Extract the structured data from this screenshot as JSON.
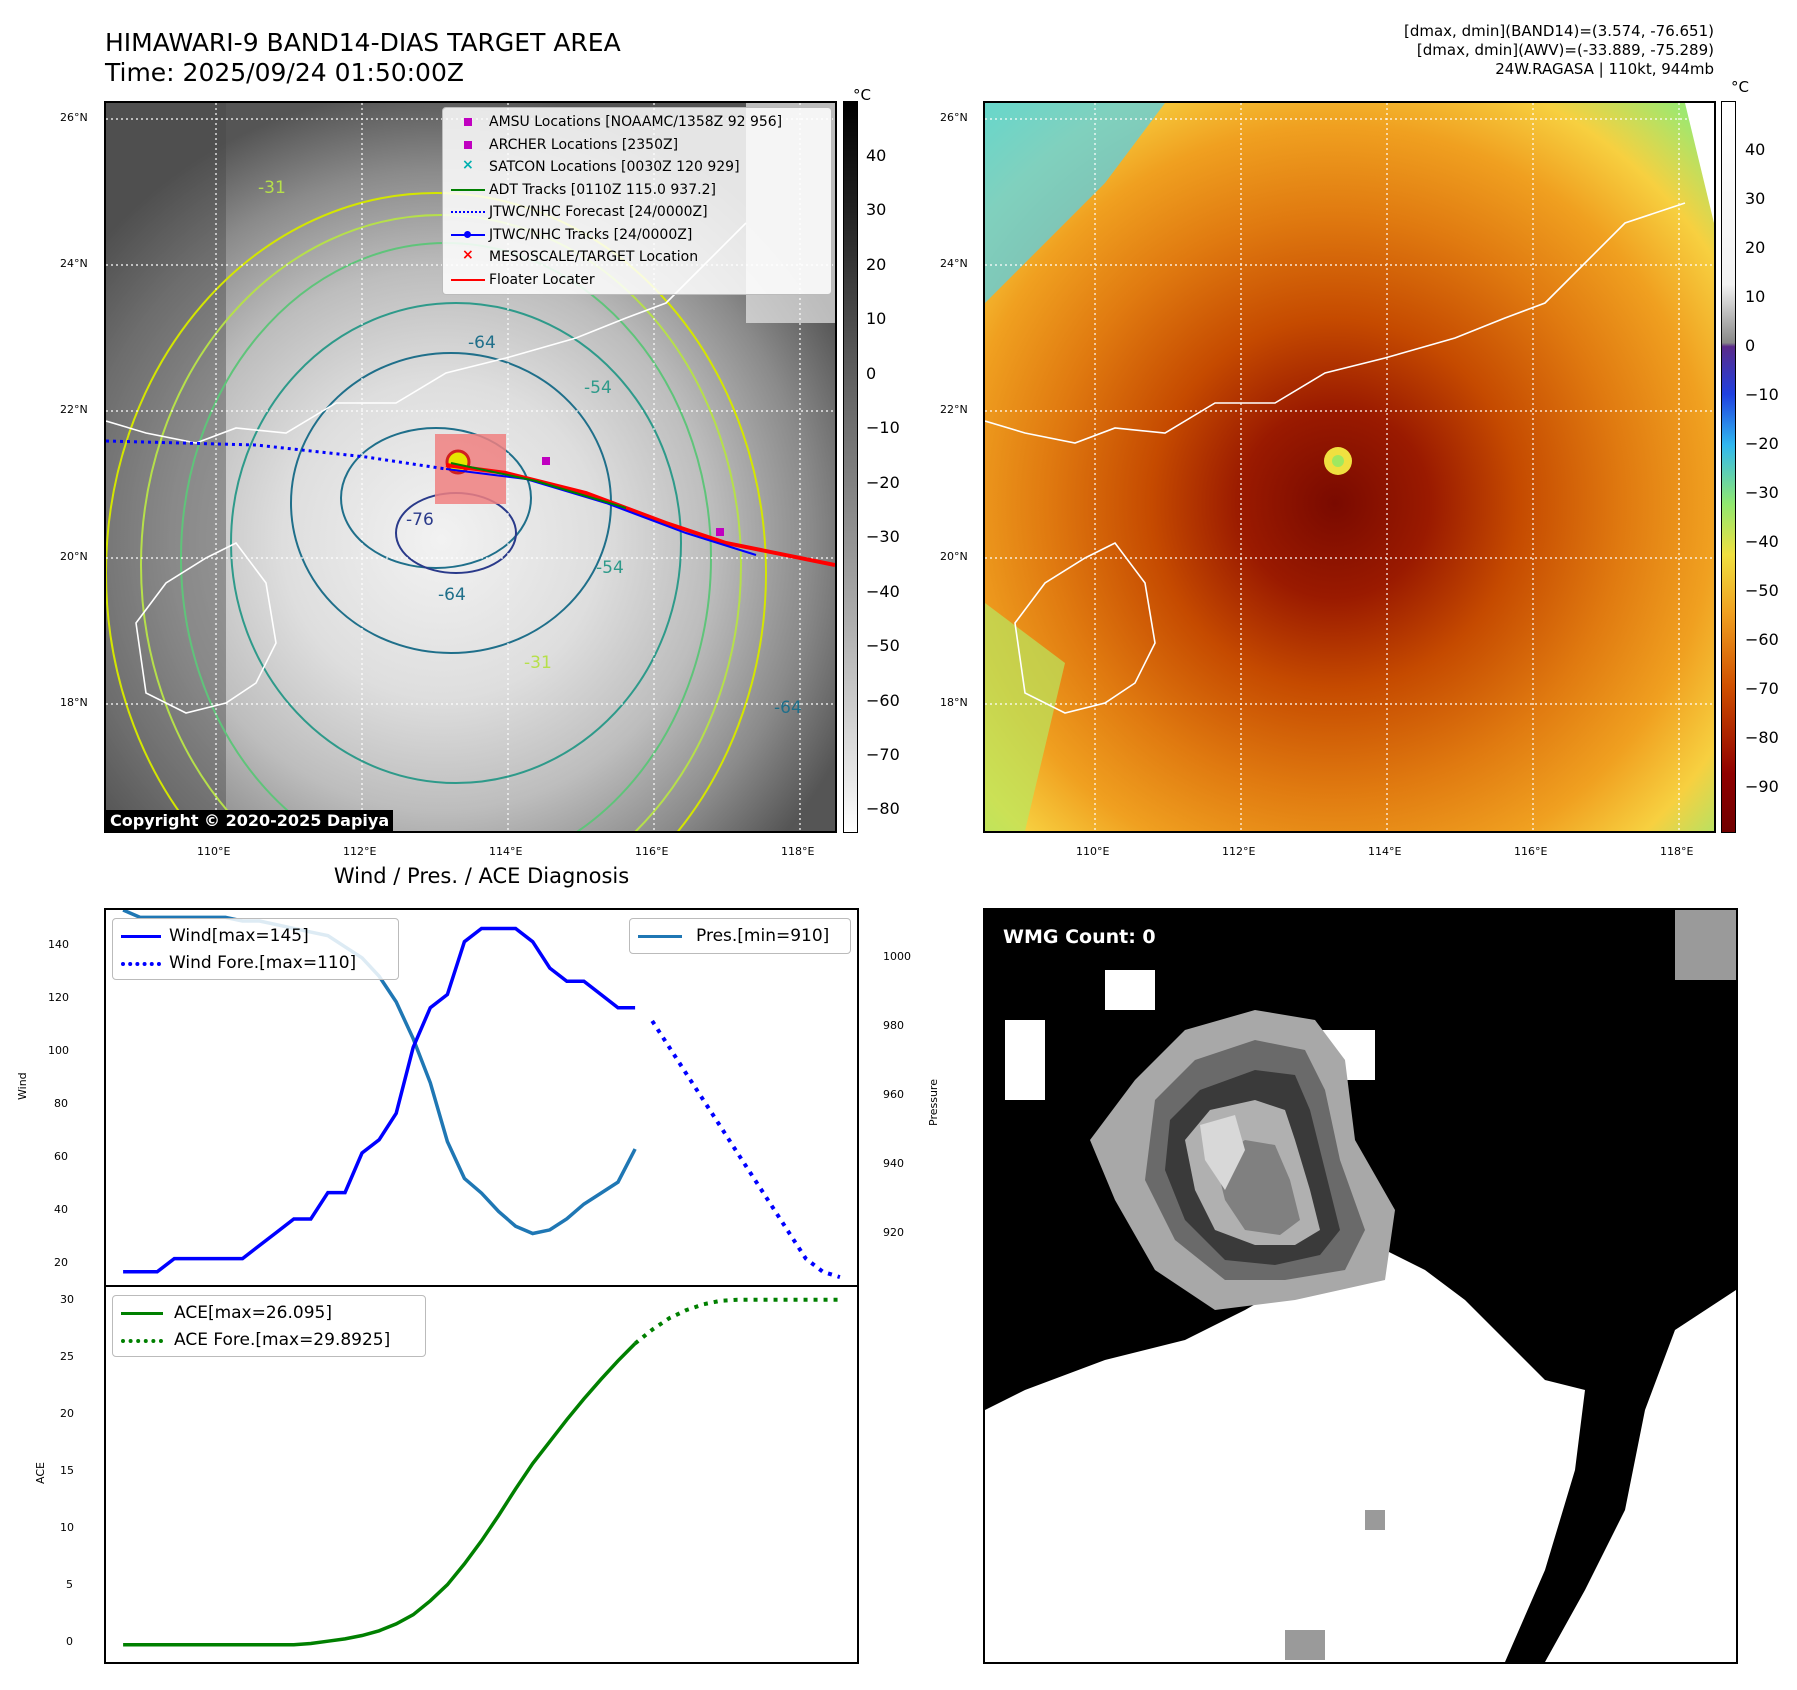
{
  "header": {
    "title_line1": "HIMAWARI-9 BAND14-DIAS TARGET AREA",
    "title_line2": "Time: 2025/09/24 01:50:00Z",
    "right_line1": "[dmax, dmin](BAND14)=(3.574, -76.651)",
    "right_line2": "[dmax, dmin](AWV)=(-33.889, -75.289)",
    "right_line3": "24W.RAGASA | 110kt, 944mb"
  },
  "map": {
    "lat_labels": [
      "26°N",
      "24°N",
      "22°N",
      "20°N",
      "18°N"
    ],
    "lon_labels": [
      "110°E",
      "112°E",
      "114°E",
      "116°E",
      "118°E"
    ],
    "contour_labels": [
      "-76",
      "-64",
      "-64",
      "-54",
      "-54",
      "-31",
      "-31",
      "-64"
    ],
    "copyright": "Copyright © 2020-2025 Dapiya"
  },
  "colorbar_left": {
    "unit": "°C",
    "ticks": [
      "40",
      "30",
      "20",
      "10",
      "0",
      "−10",
      "−20",
      "−30",
      "−40",
      "−50",
      "−60",
      "−70",
      "−80"
    ]
  },
  "colorbar_right": {
    "unit": "°C",
    "ticks": [
      "40",
      "30",
      "20",
      "10",
      "0",
      "−10",
      "−20",
      "−30",
      "−40",
      "−50",
      "−60",
      "−70",
      "−80",
      "−90"
    ]
  },
  "legend_map": [
    {
      "label": "AMSU Locations [NOAAMC/1358Z 92 956]",
      "icon": "square",
      "color": "#c000c0"
    },
    {
      "label": "ARCHER Locations [2350Z]",
      "icon": "square",
      "color": "#c000c0"
    },
    {
      "label": "SATCON Locations [0030Z 120 929]",
      "icon": "x-mark",
      "color": "#00b0b0"
    },
    {
      "label": "ADT Tracks [0110Z 115.0 937.2]",
      "icon": "line",
      "color": "#008000"
    },
    {
      "label": "JTWC/NHC Forecast [24/0000Z]",
      "icon": "dotted-line",
      "color": "#0000ff"
    },
    {
      "label": "JTWC/NHC Tracks [24/0000Z]",
      "icon": "line-dot",
      "color": "#0000ff"
    },
    {
      "label": "MESOSCALE/TARGET Location",
      "icon": "x-mark",
      "color": "#ff0000"
    },
    {
      "label": "Floater Locater",
      "icon": "line",
      "color": "#ff0000"
    }
  ],
  "diag_title": "Wind / Pres. / ACE Diagnosis",
  "wind_panel": {
    "ylabel_left": "Wind",
    "ylabel_right": "Pressure",
    "wind_ticks": [
      "20",
      "40",
      "60",
      "80",
      "100",
      "120",
      "140"
    ],
    "pres_ticks": [
      "920",
      "940",
      "960",
      "980",
      "1000"
    ],
    "legend_left": [
      "Wind[max=145]",
      "Wind Fore.[max=110]"
    ],
    "legend_right": [
      "Pres.[min=910]"
    ]
  },
  "ace_panel": {
    "ylabel": "ACE",
    "ticks": [
      "0",
      "5",
      "10",
      "15",
      "20",
      "25",
      "30"
    ],
    "legend": [
      "ACE[max=26.095]",
      "ACE Fore.[max=29.8925]"
    ]
  },
  "wmg": {
    "label": "WMG Count: 0"
  },
  "chart_data": [
    {
      "type": "line",
      "title": "Wind / Pres. / ACE Diagnosis",
      "ylabel": "Wind",
      "ylim": [
        10,
        152
      ],
      "series": [
        {
          "name": "Wind[max=145]",
          "color": "#0000ff",
          "x": [
            0,
            1,
            2,
            3,
            4,
            5,
            6,
            7,
            8,
            9,
            10,
            11,
            12,
            13,
            14,
            15,
            16,
            17,
            18,
            19,
            20,
            21,
            22,
            23,
            24,
            25,
            26,
            27,
            28,
            29,
            30
          ],
          "values": [
            15,
            15,
            15,
            20,
            20,
            20,
            20,
            20,
            25,
            30,
            35,
            35,
            45,
            45,
            60,
            65,
            75,
            100,
            115,
            120,
            140,
            145,
            145,
            145,
            140,
            130,
            125,
            125,
            120,
            115,
            115
          ]
        },
        {
          "name": "Wind Fore.[max=110]",
          "color": "#0000ff",
          "style": "dotted",
          "x": [
            31,
            32,
            33,
            34,
            35,
            36,
            37,
            38,
            39,
            40,
            41,
            42
          ],
          "values": [
            110,
            100,
            90,
            80,
            70,
            60,
            50,
            40,
            30,
            20,
            15,
            13
          ]
        }
      ]
    },
    {
      "type": "line",
      "ylabel": "Pressure",
      "ylim": [
        908,
        1010
      ],
      "series": [
        {
          "name": "Pres.[min=910]",
          "color": "#1f77b4",
          "x": [
            0,
            1,
            2,
            3,
            4,
            5,
            6,
            7,
            8,
            9,
            10,
            11,
            12,
            13,
            14,
            15,
            16,
            17,
            18,
            19,
            20,
            21,
            22,
            23,
            24,
            25,
            26,
            27,
            28,
            29,
            30
          ],
          "values": [
            1010,
            1008,
            1008,
            1008,
            1008,
            1008,
            1008,
            1007,
            1007,
            1006,
            1005,
            1004,
            1003,
            1000,
            997,
            992,
            985,
            975,
            963,
            947,
            937,
            933,
            928,
            924,
            922,
            923,
            926,
            930,
            933,
            936,
            945
          ]
        }
      ]
    },
    {
      "type": "line",
      "ylabel": "ACE",
      "ylim": [
        -1.5,
        31
      ],
      "series": [
        {
          "name": "ACE[max=26.095]",
          "color": "#008000",
          "x": [
            0,
            1,
            2,
            3,
            4,
            5,
            6,
            7,
            8,
            9,
            10,
            11,
            12,
            13,
            14,
            15,
            16,
            17,
            18,
            19,
            20,
            21,
            22,
            23,
            24,
            25,
            26,
            27,
            28,
            29,
            30
          ],
          "values": [
            0,
            0,
            0,
            0,
            0,
            0,
            0,
            0,
            0,
            0,
            0,
            0.1,
            0.3,
            0.5,
            0.8,
            1.2,
            1.8,
            2.6,
            3.8,
            5.2,
            7.0,
            9.0,
            11.2,
            13.5,
            15.7,
            17.6,
            19.5,
            21.3,
            23.0,
            24.6,
            26.1
          ]
        },
        {
          "name": "ACE Fore.[max=29.8925]",
          "color": "#008000",
          "style": "dotted",
          "x": [
            30,
            31,
            32,
            33,
            34,
            35,
            36,
            37,
            38,
            39,
            40,
            41,
            42
          ],
          "values": [
            26.1,
            27.3,
            28.3,
            29.0,
            29.5,
            29.8,
            29.89,
            29.89,
            29.89,
            29.89,
            29.89,
            29.89,
            29.89
          ]
        }
      ]
    }
  ]
}
